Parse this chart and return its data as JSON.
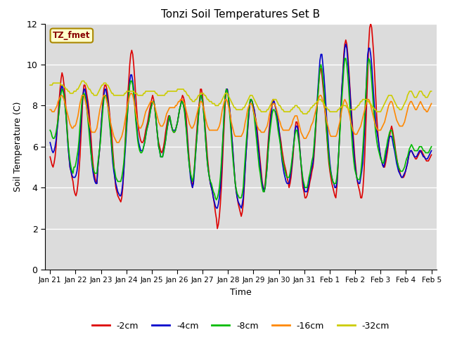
{
  "title": "Tonzi Soil Temperatures Set B",
  "xlabel": "Time",
  "ylabel": "Soil Temperature (C)",
  "ylim": [
    0,
    12
  ],
  "yticks": [
    0,
    2,
    4,
    6,
    8,
    10,
    12
  ],
  "legend_label": "TZ_fmet",
  "series_labels": [
    "-2cm",
    "-4cm",
    "-8cm",
    "-16cm",
    "-32cm"
  ],
  "series_colors": [
    "#dd0000",
    "#0000cc",
    "#00bb00",
    "#ff8800",
    "#cccc00"
  ],
  "bg_color": "#dcdcdc",
  "xtick_labels": [
    "Jan 21",
    "Jan 22",
    "Jan 23",
    "Jan 24",
    "Jan 25",
    "Jan 26",
    "Jan 27",
    "Jan 28",
    "Jan 29",
    "Jan 30",
    "Jan 31",
    "Feb 1",
    "Feb 2",
    "Feb 3",
    "Feb 4",
    "Feb 5"
  ],
  "n_days": 16,
  "pts_per_day": 24,
  "depth2cm": [
    5.5,
    5.3,
    5.1,
    5.0,
    5.2,
    5.5,
    6.0,
    6.8,
    7.5,
    8.2,
    8.8,
    9.3,
    9.6,
    9.4,
    9.0,
    8.5,
    7.8,
    7.0,
    6.2,
    5.5,
    5.0,
    4.8,
    4.5,
    4.3,
    3.9,
    3.7,
    3.6,
    3.8,
    4.2,
    4.8,
    5.5,
    6.5,
    7.5,
    8.5,
    9.0,
    9.0,
    8.8,
    8.5,
    8.2,
    7.8,
    7.2,
    6.5,
    5.8,
    5.2,
    4.8,
    4.5,
    4.3,
    4.2,
    5.0,
    5.5,
    6.0,
    6.8,
    7.5,
    8.2,
    8.8,
    9.0,
    9.0,
    8.8,
    8.5,
    8.0,
    7.5,
    7.0,
    6.5,
    5.8,
    5.2,
    4.5,
    4.0,
    3.8,
    3.6,
    3.5,
    3.4,
    3.3,
    3.5,
    4.0,
    4.8,
    5.8,
    6.8,
    7.8,
    8.5,
    9.2,
    10.0,
    10.5,
    10.7,
    10.5,
    10.0,
    9.3,
    8.5,
    7.8,
    7.2,
    6.8,
    6.5,
    6.3,
    6.2,
    6.2,
    6.3,
    6.5,
    6.8,
    7.0,
    7.2,
    7.5,
    7.8,
    8.0,
    8.3,
    8.5,
    8.3,
    8.0,
    7.5,
    7.0,
    6.5,
    6.2,
    6.0,
    5.8,
    5.7,
    5.8,
    6.0,
    6.3,
    6.7,
    7.0,
    7.3,
    7.5,
    7.5,
    7.2,
    7.0,
    6.8,
    6.7,
    6.7,
    6.8,
    7.0,
    7.2,
    7.5,
    7.8,
    8.0,
    8.3,
    8.5,
    8.4,
    8.2,
    7.8,
    7.2,
    6.5,
    5.8,
    5.2,
    4.7,
    4.3,
    4.0,
    4.4,
    5.0,
    5.8,
    6.5,
    7.2,
    7.8,
    8.2,
    8.8,
    8.8,
    8.5,
    8.0,
    7.5,
    6.8,
    6.2,
    5.5,
    5.0,
    4.5,
    4.2,
    4.0,
    3.8,
    3.5,
    3.2,
    2.8,
    2.5,
    2.0,
    2.2,
    2.6,
    3.2,
    4.0,
    5.0,
    6.2,
    7.2,
    8.2,
    8.8,
    8.8,
    8.5,
    8.0,
    7.5,
    6.8,
    6.2,
    5.5,
    4.8,
    4.2,
    3.8,
    3.5,
    3.2,
    3.0,
    2.8,
    2.6,
    2.8,
    3.2,
    4.0,
    5.0,
    5.8,
    6.5,
    7.2,
    7.8,
    8.2,
    8.3,
    8.2,
    8.0,
    7.8,
    7.5,
    7.2,
    6.8,
    6.3,
    5.8,
    5.3,
    4.8,
    4.3,
    4.0,
    3.8,
    4.2,
    4.8,
    5.5,
    6.2,
    6.8,
    7.3,
    7.8,
    8.2,
    8.3,
    8.2,
    8.0,
    7.8,
    7.5,
    7.2,
    6.8,
    6.5,
    6.2,
    5.8,
    5.5,
    5.2,
    5.0,
    4.8,
    4.5,
    4.3,
    4.0,
    4.2,
    4.5,
    5.0,
    5.5,
    6.2,
    6.8,
    7.2,
    7.2,
    7.0,
    6.5,
    5.8,
    5.2,
    4.5,
    4.0,
    3.8,
    3.5,
    3.5,
    3.6,
    3.8,
    4.0,
    4.3,
    4.5,
    4.8,
    5.0,
    5.5,
    6.2,
    7.0,
    7.8,
    8.5,
    9.2,
    9.8,
    9.8,
    9.5,
    9.0,
    8.5,
    7.8,
    7.2,
    6.5,
    5.8,
    5.2,
    4.8,
    4.5,
    4.2,
    4.0,
    3.8,
    3.6,
    3.5,
    4.0,
    4.8,
    5.8,
    6.8,
    7.8,
    8.8,
    9.5,
    10.5,
    11.0,
    11.2,
    11.0,
    10.5,
    9.8,
    9.0,
    8.2,
    7.5,
    6.8,
    6.2,
    5.5,
    5.0,
    4.5,
    4.2,
    4.0,
    3.8,
    3.5,
    3.5,
    3.8,
    4.5,
    5.5,
    6.8,
    8.0,
    9.5,
    11.0,
    11.8,
    12.0,
    11.8,
    11.2,
    10.5,
    9.5,
    8.5,
    7.5,
    6.8,
    6.2,
    5.8,
    5.5,
    5.3,
    5.1,
    5.0,
    5.0,
    5.2,
    5.5,
    5.8,
    6.2,
    6.5,
    6.8,
    7.0,
    6.8,
    6.5,
    6.2,
    5.8,
    5.5,
    5.2,
    5.0,
    4.8,
    4.6,
    4.5,
    4.5,
    4.5,
    4.6,
    4.8,
    5.0,
    5.2,
    5.5,
    5.7,
    5.8,
    5.8,
    5.7,
    5.6,
    5.5,
    5.4,
    5.4,
    5.5,
    5.6,
    5.7,
    5.8,
    5.8,
    5.7,
    5.6,
    5.5,
    5.4,
    5.3,
    5.3,
    5.3,
    5.4,
    5.5,
    5.6
  ],
  "depth4cm": [
    6.2,
    6.0,
    5.8,
    5.7,
    5.8,
    6.0,
    6.3,
    6.8,
    7.2,
    7.8,
    8.3,
    8.8,
    9.0,
    8.8,
    8.5,
    8.0,
    7.5,
    6.8,
    6.0,
    5.5,
    5.0,
    4.8,
    4.6,
    4.5,
    4.5,
    4.5,
    4.6,
    4.8,
    5.2,
    5.8,
    6.5,
    7.2,
    8.0,
    8.5,
    8.8,
    8.8,
    8.5,
    8.2,
    7.8,
    7.2,
    6.5,
    5.8,
    5.2,
    4.8,
    4.5,
    4.3,
    4.2,
    4.2,
    5.0,
    5.5,
    6.0,
    6.8,
    7.5,
    8.0,
    8.5,
    8.8,
    8.8,
    8.5,
    8.2,
    7.8,
    7.2,
    6.5,
    5.8,
    5.2,
    4.8,
    4.5,
    4.2,
    4.0,
    3.8,
    3.7,
    3.6,
    3.6,
    3.8,
    4.2,
    4.8,
    5.5,
    6.2,
    7.0,
    7.8,
    8.5,
    9.2,
    9.5,
    9.5,
    9.2,
    8.8,
    8.2,
    7.5,
    7.0,
    6.5,
    6.2,
    6.0,
    5.8,
    5.8,
    5.8,
    6.0,
    6.2,
    6.5,
    6.8,
    7.0,
    7.2,
    7.5,
    7.8,
    8.0,
    8.2,
    8.2,
    8.0,
    7.5,
    7.0,
    6.5,
    6.0,
    5.8,
    5.5,
    5.5,
    5.5,
    5.8,
    6.0,
    6.3,
    6.7,
    7.0,
    7.3,
    7.5,
    7.2,
    7.0,
    6.8,
    6.8,
    6.8,
    6.8,
    7.0,
    7.2,
    7.5,
    7.8,
    8.0,
    8.2,
    8.2,
    8.0,
    7.8,
    7.3,
    6.8,
    6.2,
    5.5,
    5.0,
    4.5,
    4.2,
    4.0,
    4.2,
    4.8,
    5.5,
    6.2,
    6.8,
    7.5,
    8.0,
    8.5,
    8.5,
    8.2,
    7.8,
    7.2,
    6.5,
    5.8,
    5.2,
    4.8,
    4.5,
    4.2,
    4.0,
    3.8,
    3.5,
    3.3,
    3.1,
    3.0,
    3.0,
    3.2,
    3.5,
    4.0,
    4.8,
    5.8,
    6.8,
    7.8,
    8.5,
    8.8,
    8.8,
    8.5,
    8.0,
    7.5,
    6.8,
    6.2,
    5.5,
    4.8,
    4.2,
    3.8,
    3.5,
    3.3,
    3.2,
    3.1,
    3.0,
    3.2,
    3.5,
    4.2,
    5.0,
    5.8,
    6.5,
    7.2,
    7.8,
    8.2,
    8.3,
    8.2,
    8.0,
    7.8,
    7.5,
    7.0,
    6.5,
    6.0,
    5.5,
    5.0,
    4.5,
    4.2,
    4.0,
    3.8,
    4.0,
    4.5,
    5.0,
    5.8,
    6.5,
    7.0,
    7.5,
    8.0,
    8.2,
    8.2,
    8.0,
    7.8,
    7.5,
    7.2,
    6.8,
    6.3,
    5.8,
    5.3,
    5.0,
    4.7,
    4.5,
    4.3,
    4.2,
    4.2,
    4.2,
    4.5,
    4.8,
    5.2,
    5.8,
    6.3,
    6.8,
    7.0,
    7.0,
    6.8,
    6.3,
    5.8,
    5.2,
    4.7,
    4.3,
    4.0,
    3.8,
    3.8,
    3.8,
    4.0,
    4.2,
    4.5,
    4.8,
    5.0,
    5.2,
    5.8,
    6.5,
    7.2,
    8.0,
    8.8,
    9.5,
    10.2,
    10.5,
    10.5,
    10.0,
    9.5,
    8.8,
    8.0,
    7.2,
    6.5,
    5.8,
    5.2,
    4.8,
    4.5,
    4.3,
    4.2,
    4.0,
    4.0,
    4.2,
    5.0,
    5.8,
    6.8,
    7.8,
    8.8,
    9.5,
    10.2,
    10.8,
    11.0,
    10.8,
    10.2,
    9.5,
    8.8,
    8.0,
    7.2,
    6.5,
    5.8,
    5.2,
    4.8,
    4.5,
    4.3,
    4.2,
    4.2,
    4.5,
    4.8,
    5.2,
    6.0,
    7.0,
    8.2,
    9.5,
    10.5,
    10.8,
    10.8,
    10.5,
    10.0,
    9.2,
    8.5,
    7.8,
    7.2,
    6.8,
    6.5,
    6.2,
    5.8,
    5.5,
    5.3,
    5.1,
    5.0,
    5.2,
    5.5,
    5.8,
    6.0,
    6.3,
    6.5,
    6.5,
    6.5,
    6.3,
    6.0,
    5.8,
    5.5,
    5.2,
    5.0,
    4.8,
    4.7,
    4.6,
    4.5,
    4.5,
    4.6,
    4.7,
    4.8,
    5.0,
    5.2,
    5.5,
    5.7,
    5.8,
    5.8,
    5.7,
    5.6,
    5.5,
    5.5,
    5.5,
    5.6,
    5.7,
    5.8,
    5.8,
    5.7,
    5.6,
    5.5,
    5.5,
    5.4,
    5.4,
    5.4,
    5.5,
    5.6,
    5.7,
    5.8
  ],
  "depth8cm": [
    6.8,
    6.7,
    6.5,
    6.4,
    6.4,
    6.5,
    6.7,
    7.0,
    7.3,
    7.7,
    8.2,
    8.6,
    8.8,
    8.7,
    8.5,
    8.0,
    7.5,
    6.8,
    6.2,
    5.7,
    5.3,
    5.0,
    4.8,
    4.7,
    5.0,
    5.0,
    5.2,
    5.5,
    5.8,
    6.3,
    7.0,
    7.6,
    8.2,
    8.5,
    8.6,
    8.5,
    8.2,
    7.8,
    7.3,
    6.8,
    6.2,
    5.7,
    5.3,
    5.0,
    4.8,
    4.7,
    4.7,
    4.7,
    5.2,
    5.6,
    6.0,
    6.5,
    7.2,
    7.8,
    8.3,
    8.5,
    8.5,
    8.3,
    8.0,
    7.5,
    7.0,
    6.5,
    6.0,
    5.5,
    5.0,
    4.8,
    4.5,
    4.4,
    4.3,
    4.3,
    4.3,
    4.3,
    4.5,
    4.8,
    5.2,
    5.8,
    6.5,
    7.2,
    7.8,
    8.5,
    9.0,
    9.2,
    9.2,
    9.0,
    8.5,
    8.0,
    7.3,
    6.8,
    6.3,
    6.0,
    5.8,
    5.7,
    5.7,
    5.8,
    6.0,
    6.2,
    6.5,
    6.8,
    7.0,
    7.2,
    7.5,
    7.8,
    8.0,
    8.2,
    8.2,
    8.0,
    7.5,
    7.0,
    6.5,
    6.0,
    5.8,
    5.5,
    5.5,
    5.5,
    5.7,
    6.0,
    6.3,
    6.7,
    7.0,
    7.3,
    7.5,
    7.3,
    7.0,
    6.8,
    6.7,
    6.7,
    6.8,
    7.0,
    7.2,
    7.5,
    7.8,
    8.0,
    8.2,
    8.2,
    8.0,
    7.7,
    7.2,
    6.7,
    6.0,
    5.5,
    5.0,
    4.7,
    4.5,
    4.3,
    4.5,
    5.0,
    5.6,
    6.2,
    6.8,
    7.5,
    8.0,
    8.5,
    8.5,
    8.3,
    7.8,
    7.2,
    6.5,
    5.8,
    5.2,
    4.8,
    4.5,
    4.3,
    4.2,
    4.0,
    3.8,
    3.7,
    3.5,
    3.4,
    3.5,
    3.7,
    4.0,
    4.5,
    5.2,
    6.0,
    6.8,
    7.8,
    8.5,
    8.8,
    8.7,
    8.4,
    7.8,
    7.2,
    6.5,
    5.8,
    5.2,
    4.7,
    4.2,
    3.9,
    3.7,
    3.6,
    3.5,
    3.5,
    3.5,
    3.7,
    4.0,
    4.8,
    5.5,
    6.2,
    6.8,
    7.5,
    8.0,
    8.3,
    8.3,
    8.2,
    7.8,
    7.5,
    7.0,
    6.5,
    6.0,
    5.5,
    5.0,
    4.7,
    4.3,
    4.0,
    3.8,
    3.8,
    4.0,
    4.5,
    5.0,
    5.8,
    6.3,
    6.8,
    7.2,
    7.6,
    7.8,
    7.8,
    7.7,
    7.5,
    7.2,
    6.8,
    6.5,
    6.2,
    5.8,
    5.5,
    5.2,
    5.0,
    4.8,
    4.6,
    4.5,
    4.5,
    4.5,
    4.7,
    5.0,
    5.4,
    5.8,
    6.2,
    6.6,
    6.8,
    6.8,
    6.5,
    6.2,
    5.7,
    5.2,
    4.8,
    4.4,
    4.2,
    4.0,
    4.0,
    4.0,
    4.2,
    4.5,
    4.7,
    5.0,
    5.3,
    5.5,
    6.0,
    6.6,
    7.2,
    7.8,
    8.5,
    9.2,
    9.8,
    10.0,
    9.8,
    9.3,
    8.8,
    8.0,
    7.3,
    6.6,
    6.0,
    5.4,
    5.0,
    4.7,
    4.5,
    4.3,
    4.2,
    4.2,
    4.2,
    4.5,
    5.0,
    5.8,
    6.6,
    7.5,
    8.3,
    9.0,
    9.8,
    10.3,
    10.3,
    10.0,
    9.5,
    8.8,
    8.0,
    7.2,
    6.5,
    5.8,
    5.3,
    4.9,
    4.7,
    4.5,
    4.4,
    4.4,
    4.4,
    4.7,
    5.2,
    5.8,
    6.6,
    7.5,
    8.5,
    9.3,
    10.0,
    10.3,
    10.2,
    9.8,
    9.2,
    8.5,
    7.8,
    7.2,
    6.7,
    6.3,
    6.0,
    5.8,
    5.6,
    5.4,
    5.3,
    5.2,
    5.2,
    5.5,
    5.8,
    6.0,
    6.3,
    6.5,
    6.7,
    6.8,
    6.8,
    6.6,
    6.3,
    6.0,
    5.7,
    5.4,
    5.2,
    5.0,
    4.9,
    4.8,
    4.8,
    4.8,
    4.9,
    5.0,
    5.2,
    5.4,
    5.5,
    5.7,
    5.9,
    6.0,
    6.1,
    6.0,
    5.9,
    5.8,
    5.8,
    5.8,
    5.8,
    5.9,
    6.0,
    6.0,
    6.0,
    5.9,
    5.8,
    5.8,
    5.7,
    5.7,
    5.7,
    5.7,
    5.8,
    5.9,
    6.0
  ],
  "depth16cm": [
    7.8,
    7.8,
    7.7,
    7.7,
    7.7,
    7.8,
    7.9,
    8.0,
    8.2,
    8.3,
    8.4,
    8.5,
    8.5,
    8.4,
    8.3,
    8.1,
    7.9,
    7.7,
    7.5,
    7.3,
    7.1,
    7.0,
    6.9,
    6.9,
    7.0,
    7.0,
    7.1,
    7.3,
    7.5,
    7.8,
    8.1,
    8.3,
    8.5,
    8.5,
    8.5,
    8.3,
    8.1,
    7.8,
    7.5,
    7.2,
    7.0,
    6.8,
    6.7,
    6.7,
    6.7,
    6.7,
    6.8,
    6.9,
    7.2,
    7.5,
    7.8,
    8.0,
    8.2,
    8.4,
    8.5,
    8.5,
    8.4,
    8.2,
    8.0,
    7.7,
    7.4,
    7.1,
    6.9,
    6.7,
    6.5,
    6.4,
    6.3,
    6.2,
    6.2,
    6.2,
    6.3,
    6.4,
    6.5,
    6.7,
    6.9,
    7.2,
    7.5,
    7.8,
    8.1,
    8.3,
    8.5,
    8.6,
    8.6,
    8.5,
    8.3,
    8.0,
    7.7,
    7.4,
    7.2,
    7.0,
    6.9,
    6.9,
    7.0,
    7.1,
    7.3,
    7.5,
    7.7,
    7.8,
    7.9,
    8.0,
    8.1,
    8.2,
    8.2,
    8.2,
    8.1,
    8.0,
    7.8,
    7.6,
    7.4,
    7.2,
    7.1,
    7.0,
    7.0,
    7.0,
    7.1,
    7.2,
    7.4,
    7.6,
    7.7,
    7.8,
    7.9,
    7.9,
    7.9,
    7.9,
    7.9,
    7.9,
    8.0,
    8.0,
    8.1,
    8.2,
    8.2,
    8.3,
    8.3,
    8.3,
    8.2,
    8.1,
    7.9,
    7.7,
    7.5,
    7.3,
    7.1,
    7.0,
    6.9,
    6.9,
    7.0,
    7.1,
    7.3,
    7.5,
    7.7,
    7.9,
    8.0,
    8.2,
    8.2,
    8.1,
    7.9,
    7.7,
    7.4,
    7.2,
    7.0,
    6.9,
    6.8,
    6.8,
    6.8,
    6.8,
    6.8,
    6.8,
    6.8,
    6.8,
    6.8,
    6.9,
    7.0,
    7.2,
    7.5,
    7.8,
    8.0,
    8.2,
    8.3,
    8.3,
    8.2,
    8.0,
    7.8,
    7.5,
    7.2,
    7.0,
    6.8,
    6.6,
    6.5,
    6.5,
    6.5,
    6.5,
    6.5,
    6.5,
    6.5,
    6.6,
    6.7,
    6.9,
    7.2,
    7.4,
    7.7,
    7.9,
    8.0,
    8.1,
    8.1,
    8.0,
    7.8,
    7.6,
    7.4,
    7.2,
    7.0,
    6.9,
    6.8,
    6.8,
    6.7,
    6.7,
    6.7,
    6.7,
    6.8,
    6.9,
    7.0,
    7.2,
    7.5,
    7.7,
    7.9,
    8.0,
    8.1,
    8.1,
    8.0,
    7.9,
    7.7,
    7.5,
    7.3,
    7.2,
    7.0,
    6.9,
    6.8,
    6.8,
    6.8,
    6.8,
    6.8,
    6.8,
    6.8,
    6.9,
    7.0,
    7.1,
    7.3,
    7.4,
    7.5,
    7.5,
    7.5,
    7.3,
    7.1,
    6.9,
    6.7,
    6.6,
    6.5,
    6.4,
    6.4,
    6.4,
    6.5,
    6.6,
    6.7,
    6.8,
    7.0,
    7.1,
    7.2,
    7.4,
    7.6,
    7.8,
    8.0,
    8.2,
    8.4,
    8.5,
    8.5,
    8.4,
    8.2,
    8.0,
    7.8,
    7.5,
    7.2,
    7.0,
    6.8,
    6.6,
    6.5,
    6.5,
    6.5,
    6.5,
    6.5,
    6.5,
    6.6,
    6.8,
    7.0,
    7.2,
    7.5,
    7.8,
    8.0,
    8.2,
    8.3,
    8.2,
    8.1,
    7.9,
    7.7,
    7.5,
    7.2,
    7.0,
    6.8,
    6.7,
    6.6,
    6.6,
    6.6,
    6.7,
    6.8,
    6.9,
    7.0,
    7.2,
    7.4,
    7.6,
    7.8,
    8.0,
    8.2,
    8.3,
    8.3,
    8.2,
    8.0,
    7.8,
    7.6,
    7.4,
    7.2,
    7.0,
    6.9,
    6.8,
    6.8,
    6.8,
    6.8,
    6.9,
    7.0,
    7.1,
    7.2,
    7.4,
    7.6,
    7.8,
    8.0,
    8.1,
    8.2,
    8.2,
    8.1,
    7.9,
    7.7,
    7.5,
    7.3,
    7.2,
    7.1,
    7.0,
    7.0,
    7.0,
    7.0,
    7.1,
    7.2,
    7.4,
    7.6,
    7.8,
    8.0,
    8.1,
    8.2,
    8.2,
    8.1,
    8.0,
    7.9,
    7.8,
    7.8,
    7.9,
    8.0,
    8.1,
    8.2,
    8.1,
    8.0,
    7.9,
    7.8,
    7.8,
    7.7,
    7.7,
    7.8,
    7.9,
    8.0,
    8.1
  ],
  "depth32cm": [
    9.0,
    9.0,
    9.0,
    9.1,
    9.1,
    9.1,
    9.1,
    9.1,
    9.1,
    9.1,
    9.1,
    9.0,
    9.0,
    9.0,
    8.9,
    8.9,
    8.8,
    8.8,
    8.7,
    8.7,
    8.6,
    8.6,
    8.6,
    8.6,
    8.7,
    8.7,
    8.7,
    8.8,
    8.8,
    8.9,
    9.0,
    9.1,
    9.2,
    9.2,
    9.2,
    9.1,
    9.1,
    9.0,
    8.9,
    8.8,
    8.8,
    8.7,
    8.6,
    8.6,
    8.5,
    8.5,
    8.5,
    8.5,
    8.6,
    8.7,
    8.8,
    8.9,
    9.0,
    9.0,
    9.1,
    9.1,
    9.1,
    9.0,
    9.0,
    8.9,
    8.8,
    8.7,
    8.6,
    8.6,
    8.5,
    8.5,
    8.5,
    8.5,
    8.5,
    8.5,
    8.5,
    8.5,
    8.5,
    8.5,
    8.5,
    8.6,
    8.6,
    8.7,
    8.7,
    8.7,
    8.7,
    8.7,
    8.7,
    8.7,
    8.7,
    8.6,
    8.6,
    8.6,
    8.5,
    8.5,
    8.5,
    8.5,
    8.5,
    8.5,
    8.6,
    8.6,
    8.7,
    8.7,
    8.7,
    8.7,
    8.7,
    8.7,
    8.7,
    8.7,
    8.7,
    8.7,
    8.6,
    8.6,
    8.5,
    8.5,
    8.5,
    8.5,
    8.5,
    8.5,
    8.5,
    8.5,
    8.6,
    8.6,
    8.7,
    8.7,
    8.7,
    8.7,
    8.7,
    8.7,
    8.7,
    8.7,
    8.7,
    8.7,
    8.8,
    8.8,
    8.8,
    8.8,
    8.8,
    8.8,
    8.8,
    8.7,
    8.7,
    8.6,
    8.5,
    8.5,
    8.4,
    8.3,
    8.3,
    8.2,
    8.2,
    8.2,
    8.3,
    8.3,
    8.4,
    8.5,
    8.5,
    8.6,
    8.6,
    8.6,
    8.6,
    8.5,
    8.5,
    8.4,
    8.3,
    8.3,
    8.2,
    8.2,
    8.2,
    8.1,
    8.1,
    8.1,
    8.0,
    8.0,
    8.0,
    8.0,
    8.1,
    8.1,
    8.2,
    8.3,
    8.4,
    8.5,
    8.6,
    8.6,
    8.6,
    8.5,
    8.4,
    8.3,
    8.2,
    8.1,
    8.0,
    7.9,
    7.9,
    7.8,
    7.8,
    7.8,
    7.8,
    7.8,
    7.8,
    7.8,
    7.9,
    7.9,
    8.0,
    8.1,
    8.2,
    8.3,
    8.4,
    8.5,
    8.5,
    8.5,
    8.4,
    8.3,
    8.2,
    8.1,
    8.0,
    7.9,
    7.8,
    7.8,
    7.7,
    7.7,
    7.7,
    7.7,
    7.7,
    7.7,
    7.8,
    7.8,
    7.9,
    8.0,
    8.1,
    8.2,
    8.3,
    8.3,
    8.3,
    8.3,
    8.2,
    8.1,
    8.0,
    8.0,
    7.9,
    7.8,
    7.8,
    7.7,
    7.7,
    7.7,
    7.7,
    7.7,
    7.7,
    7.7,
    7.8,
    7.8,
    7.9,
    7.9,
    8.0,
    8.0,
    8.0,
    7.9,
    7.9,
    7.8,
    7.7,
    7.7,
    7.6,
    7.6,
    7.6,
    7.6,
    7.6,
    7.7,
    7.7,
    7.8,
    7.9,
    7.9,
    8.0,
    8.0,
    8.1,
    8.1,
    8.2,
    8.2,
    8.3,
    8.3,
    8.3,
    8.2,
    8.2,
    8.1,
    8.0,
    7.9,
    7.9,
    7.8,
    7.8,
    7.7,
    7.7,
    7.7,
    7.7,
    7.7,
    7.7,
    7.7,
    7.7,
    7.8,
    7.8,
    7.9,
    7.9,
    8.0,
    8.0,
    8.0,
    8.0,
    8.0,
    7.9,
    7.9,
    7.8,
    7.8,
    7.8,
    7.8,
    7.8,
    7.8,
    7.8,
    7.9,
    7.9,
    8.0,
    8.0,
    8.1,
    8.2,
    8.2,
    8.3,
    8.3,
    8.3,
    8.3,
    8.3,
    8.2,
    8.2,
    8.1,
    8.1,
    8.0,
    7.9,
    7.9,
    7.8,
    7.8,
    7.7,
    7.7,
    7.7,
    7.7,
    7.7,
    7.8,
    7.9,
    8.0,
    8.1,
    8.2,
    8.3,
    8.4,
    8.5,
    8.5,
    8.5,
    8.5,
    8.4,
    8.3,
    8.2,
    8.1,
    8.0,
    7.9,
    7.9,
    7.8,
    7.8,
    7.8,
    7.9,
    8.0,
    8.1,
    8.2,
    8.3,
    8.5,
    8.6,
    8.7,
    8.7,
    8.7,
    8.6,
    8.5,
    8.4,
    8.4,
    8.4,
    8.5,
    8.6,
    8.7,
    8.7,
    8.7,
    8.6,
    8.5,
    8.5,
    8.4,
    8.4,
    8.4,
    8.5,
    8.6,
    8.7,
    8.7
  ]
}
